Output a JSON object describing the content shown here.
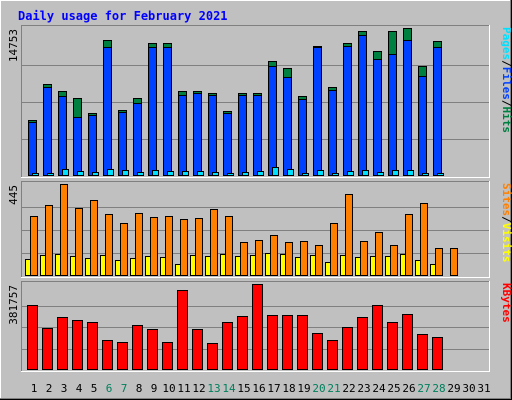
{
  "chart_data": [
    {
      "type": "bar",
      "title": "Daily usage for February 2021",
      "max_label": "14753",
      "ylim": [
        0,
        14753
      ],
      "grid": true,
      "legend": "right-side vertical",
      "legend_items": [
        {
          "label": "Hits",
          "color": "#008040"
        },
        {
          "label": "Files",
          "color": "#0040ff"
        },
        {
          "label": "Pages",
          "color": "#00e0ff"
        }
      ],
      "series": [
        {
          "name": "Hits",
          "color": "#008040",
          "values": [
            5600,
            9200,
            8500,
            7800,
            6300,
            13600,
            6600,
            7800,
            13300,
            13300,
            8500,
            8500,
            8300,
            6500,
            8300,
            8300,
            11500,
            10800,
            8000,
            13000,
            8900,
            13300,
            14500,
            12500,
            14500,
            14753,
            11000,
            13500,
            0,
            0,
            0
          ]
        },
        {
          "name": "Files",
          "color": "#0040ff",
          "values": [
            5400,
            8900,
            8000,
            5900,
            6100,
            12900,
            6400,
            7300,
            12900,
            12900,
            8100,
            8300,
            8100,
            6300,
            8100,
            8100,
            11000,
            9900,
            7700,
            12900,
            8600,
            13000,
            14100,
            11700,
            12200,
            13600,
            10000,
            12900,
            0,
            0,
            0
          ]
        },
        {
          "name": "Pages",
          "color": "#00e0ff",
          "values": [
            300,
            300,
            700,
            500,
            400,
            700,
            600,
            400,
            600,
            500,
            500,
            500,
            400,
            300,
            400,
            500,
            900,
            700,
            300,
            600,
            300,
            500,
            600,
            400,
            600,
            600,
            300,
            300,
            0,
            0,
            0
          ]
        }
      ]
    },
    {
      "type": "bar",
      "max_label": "445",
      "ylim": [
        0,
        445
      ],
      "grid": true,
      "legend": "right-side vertical",
      "legend_items": [
        {
          "label": "Visits",
          "color": "#ffff00"
        },
        {
          "label": "Sites",
          "color": "#ff8000"
        }
      ],
      "series": [
        {
          "name": "Visits",
          "color": "#ffff00",
          "values": [
            80,
            100,
            105,
            95,
            85,
            100,
            75,
            85,
            95,
            90,
            60,
            100,
            95,
            105,
            95,
            100,
            110,
            105,
            90,
            100,
            70,
            100,
            90,
            95,
            95,
            105,
            75,
            60,
            0,
            0,
            0
          ]
        },
        {
          "name": "Sites",
          "color": "#ff8000",
          "values": [
            290,
            345,
            445,
            330,
            370,
            300,
            255,
            305,
            285,
            290,
            275,
            280,
            325,
            290,
            165,
            175,
            200,
            165,
            170,
            150,
            255,
            395,
            170,
            215,
            150,
            300,
            355,
            135,
            135,
            0,
            0
          ]
        }
      ]
    },
    {
      "type": "bar",
      "max_label": "381757",
      "ylim": [
        0,
        381757
      ],
      "grid": true,
      "legend": "right-side vertical",
      "legend_items": [
        {
          "label": "KBytes",
          "color": "#ff0000"
        }
      ],
      "series": [
        {
          "name": "KBytes",
          "color": "#ff0000",
          "values": [
            290000,
            185000,
            235000,
            220000,
            215000,
            135000,
            125000,
            200000,
            180000,
            125000,
            355000,
            180000,
            120000,
            215000,
            240000,
            381757,
            245000,
            245000,
            245000,
            165000,
            135000,
            190000,
            235000,
            290000,
            215000,
            250000,
            160000,
            145000,
            0,
            0,
            0
          ]
        }
      ]
    }
  ],
  "x_labels": [
    "1",
    "2",
    "3",
    "4",
    "5",
    "6",
    "7",
    "8",
    "9",
    "10",
    "11",
    "12",
    "13",
    "14",
    "15",
    "16",
    "17",
    "18",
    "19",
    "20",
    "21",
    "22",
    "23",
    "24",
    "25",
    "26",
    "27",
    "28",
    "29",
    "30",
    "31"
  ],
  "weekend_days": [
    6,
    7,
    13,
    14,
    20,
    21,
    27,
    28
  ],
  "colors": {
    "title": "#0000ff",
    "panel_bg": "#c0c0c0",
    "border_light": "#ffffff",
    "border_dark": "#808080",
    "grid": "#808080",
    "label_text": "#000000",
    "weekend_label": "#00805c"
  }
}
